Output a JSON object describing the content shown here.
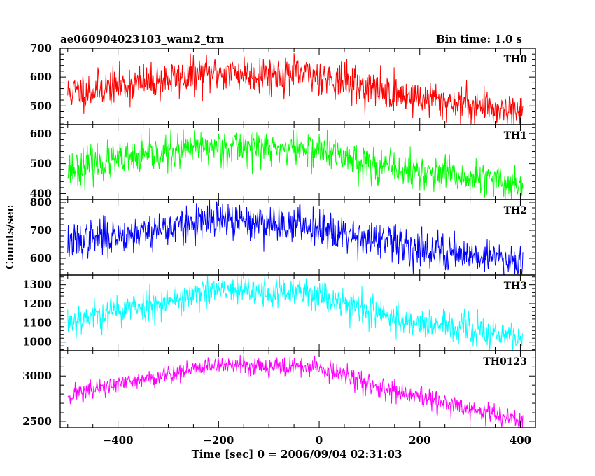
{
  "header": {
    "title": "ae060904023103_wam2_trn",
    "bin_time": "Bin time: 1.0 s"
  },
  "chart_data": {
    "type": "line",
    "xlabel": "Time [sec] 0 = 2006/09/04 02:31:03",
    "ylabel": "Counts/sec",
    "xlim": [
      -515,
      430
    ],
    "x_ticks": [
      -400,
      -200,
      0,
      200,
      400
    ],
    "x_tick_labels": [
      "−400",
      "−200",
      "0",
      "200",
      "400"
    ],
    "x_minor_step": 50,
    "x_start": -500,
    "x_end": 405,
    "x_step": 1,
    "panels": [
      {
        "name": "TH0",
        "color": "#ff0000",
        "ylim": [
          435,
          700
        ],
        "yticks": [
          500,
          600,
          700
        ],
        "ytick_labels": [
          "500",
          "600",
          "700"
        ],
        "y_minor_step": 20,
        "trend": {
          "x": [
            -500,
            -200,
            0,
            150,
            405
          ],
          "y": [
            545,
            615,
            605,
            540,
            480
          ]
        },
        "noise": 32,
        "seed": 11
      },
      {
        "name": "TH1",
        "color": "#00ff00",
        "ylim": [
          380,
          630
        ],
        "yticks": [
          400,
          500,
          600
        ],
        "ytick_labels": [
          "400",
          "500",
          "600"
        ],
        "y_minor_step": 20,
        "trend": {
          "x": [
            -500,
            -200,
            0,
            150,
            405
          ],
          "y": [
            485,
            560,
            545,
            480,
            430
          ]
        },
        "noise": 30,
        "seed": 23
      },
      {
        "name": "TH2",
        "color": "#0000ff",
        "ylim": [
          540,
          810
        ],
        "yticks": [
          600,
          700,
          800
        ],
        "ytick_labels": [
          "600",
          "700",
          "800"
        ],
        "y_minor_step": 20,
        "trend": {
          "x": [
            -500,
            -200,
            0,
            150,
            405
          ],
          "y": [
            655,
            735,
            715,
            650,
            590
          ]
        },
        "noise": 33,
        "seed": 37
      },
      {
        "name": "TH3",
        "color": "#00ffff",
        "ylim": [
          955,
          1350
        ],
        "yticks": [
          1000,
          1100,
          1200,
          1300
        ],
        "ytick_labels": [
          "1000",
          "1100",
          "1200",
          "1300"
        ],
        "y_minor_step": 20,
        "trend": {
          "x": [
            -500,
            -200,
            0,
            150,
            405
          ],
          "y": [
            1110,
            1270,
            1250,
            1120,
            1020
          ]
        },
        "noise": 42,
        "seed": 53
      },
      {
        "name": "TH0123",
        "color": "#ff00ff",
        "ylim": [
          2430,
          3280
        ],
        "yticks": [
          2500,
          3000
        ],
        "ytick_labels": [
          "2500",
          "3000"
        ],
        "y_minor_step": 100,
        "trend": {
          "x": [
            -500,
            -200,
            0,
            150,
            405
          ],
          "y": [
            2790,
            3130,
            3090,
            2820,
            2500
          ]
        },
        "noise": 55,
        "seed": 71
      }
    ]
  }
}
